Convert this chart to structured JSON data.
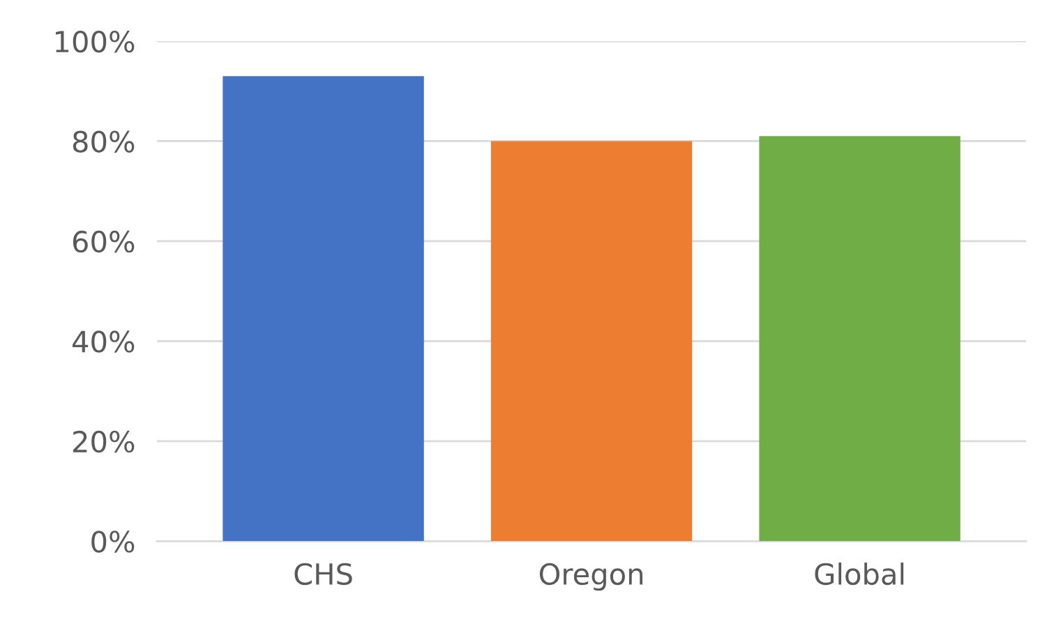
{
  "chart_data": {
    "type": "bar",
    "categories": [
      "CHS",
      "Oregon",
      "Global"
    ],
    "values": [
      93,
      80,
      81
    ],
    "colors": [
      "#4472c4",
      "#ed7d31",
      "#70ad47"
    ],
    "ylim": [
      0,
      100
    ],
    "yticks": [
      {
        "value": 0,
        "label": "0%"
      },
      {
        "value": 20,
        "label": "20%"
      },
      {
        "value": 40,
        "label": "40%"
      },
      {
        "value": 60,
        "label": "60%"
      },
      {
        "value": 80,
        "label": "80%"
      },
      {
        "value": 100,
        "label": "100%"
      }
    ],
    "grid": "y"
  }
}
